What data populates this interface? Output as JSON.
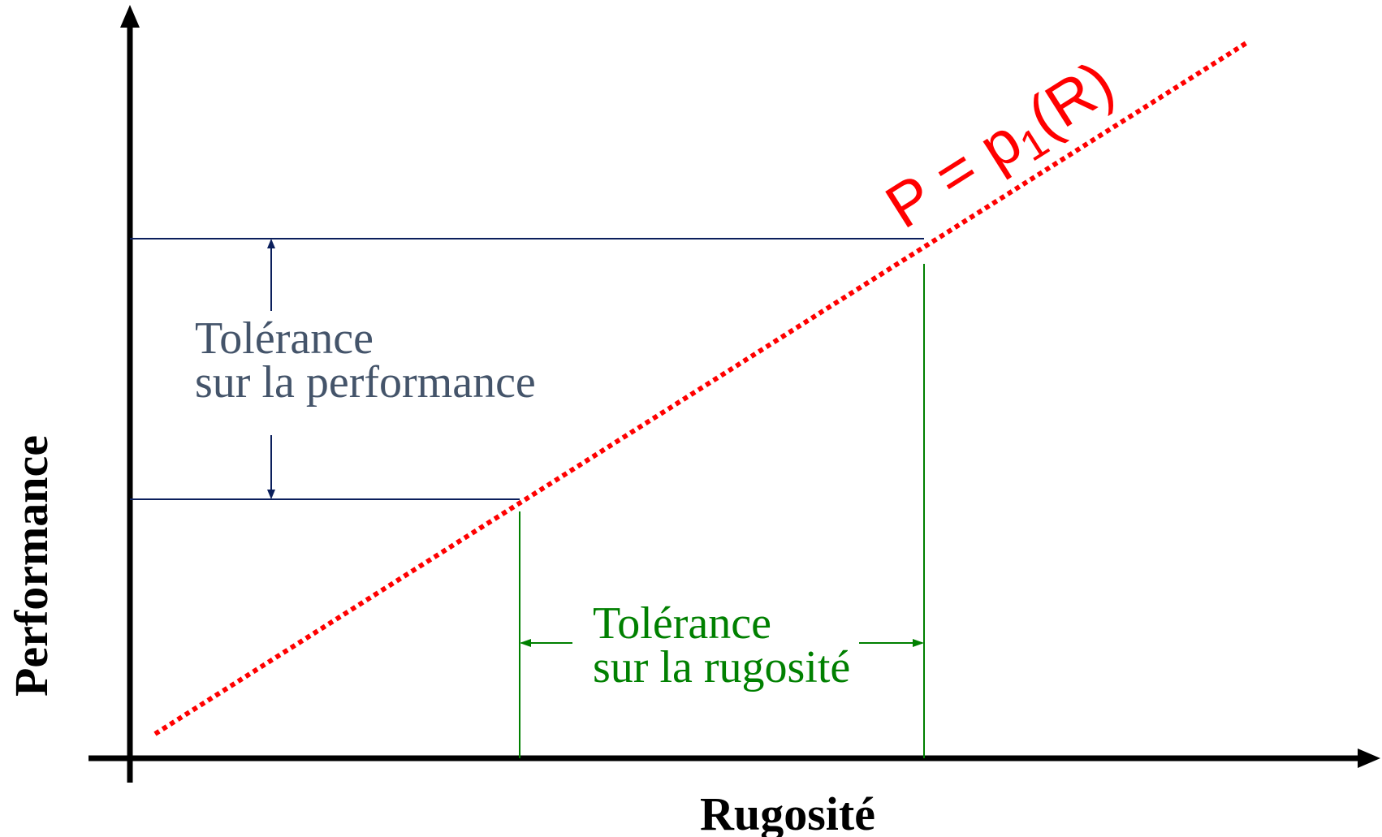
{
  "x_axis_label": "Rugosité",
  "y_axis_label": "Performance",
  "curve_label": {
    "main": "P = p",
    "sub": "1",
    "end": "(R)"
  },
  "performance_tolerance": {
    "line1": "Tolérance",
    "line2": "sur la performance"
  },
  "roughness_tolerance": {
    "line1": "Tolérance",
    "line2": "sur la rugosité"
  }
}
